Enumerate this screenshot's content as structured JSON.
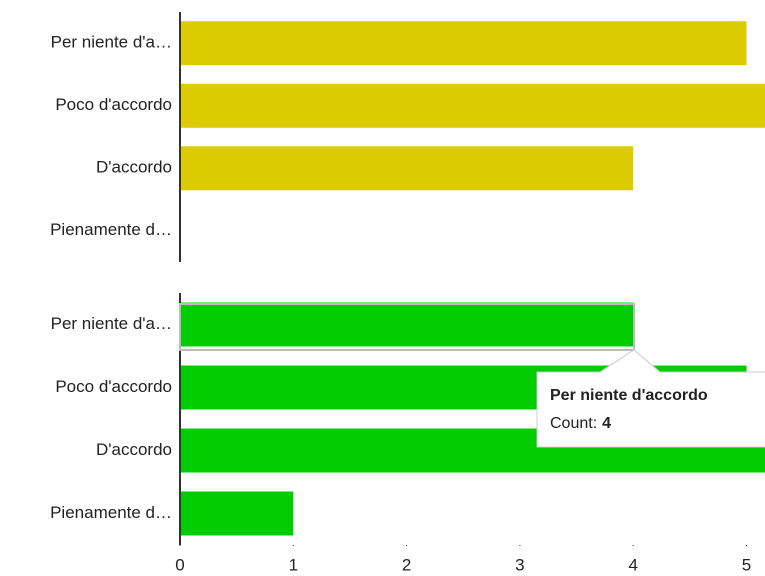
{
  "chart_data": [
    {
      "type": "bar",
      "orientation": "horizontal",
      "categories": [
        "Per niente d'a…",
        "Poco d'accordo",
        "D'accordo",
        "Pienamente d…"
      ],
      "values": [
        5,
        6,
        4,
        0
      ],
      "color": "#dccb00",
      "xlim": [
        0,
        6
      ]
    },
    {
      "type": "bar",
      "orientation": "horizontal",
      "categories": [
        "Per niente d'a…",
        "Poco d'accordo",
        "D'accordo",
        "Pienamente d…"
      ],
      "values": [
        4,
        5,
        6,
        1
      ],
      "color": "#00cc00",
      "xlim": [
        0,
        6
      ],
      "xticks": [
        0,
        1,
        2,
        3,
        4,
        5
      ]
    }
  ],
  "tooltip": {
    "title": "Per niente d'accordo",
    "label": "Count:"
  }
}
